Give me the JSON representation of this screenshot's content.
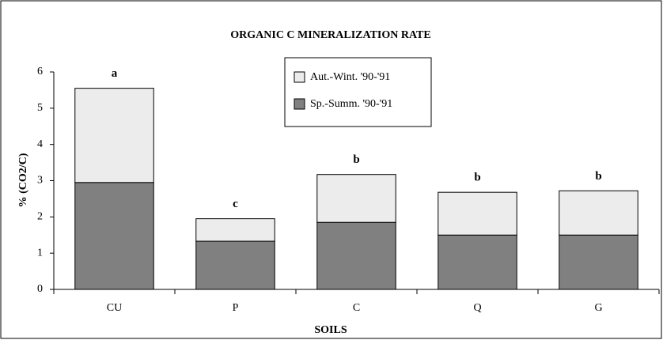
{
  "chart_data": {
    "type": "stacked_bar",
    "title": "ORGANIC C MINERALIZATION RATE",
    "x_label": "SOILS",
    "y_label": "% (CO2/C)",
    "categories": [
      "CU",
      "P",
      "C",
      "Q",
      "G"
    ],
    "series": [
      {
        "name": "Sp.-Summ. '90-'91",
        "color": "#808080",
        "values": [
          2.95,
          1.33,
          1.85,
          1.5,
          1.5
        ]
      },
      {
        "name": "Aut.-Wint. '90-'91",
        "color": "#ececec",
        "values": [
          2.6,
          0.62,
          1.32,
          1.18,
          1.22
        ]
      }
    ],
    "annotations": [
      "a",
      "c",
      "b",
      "b",
      "b"
    ],
    "ylim": [
      0,
      6
    ],
    "yticks": [
      0,
      1,
      2,
      3,
      4,
      5,
      6
    ]
  }
}
